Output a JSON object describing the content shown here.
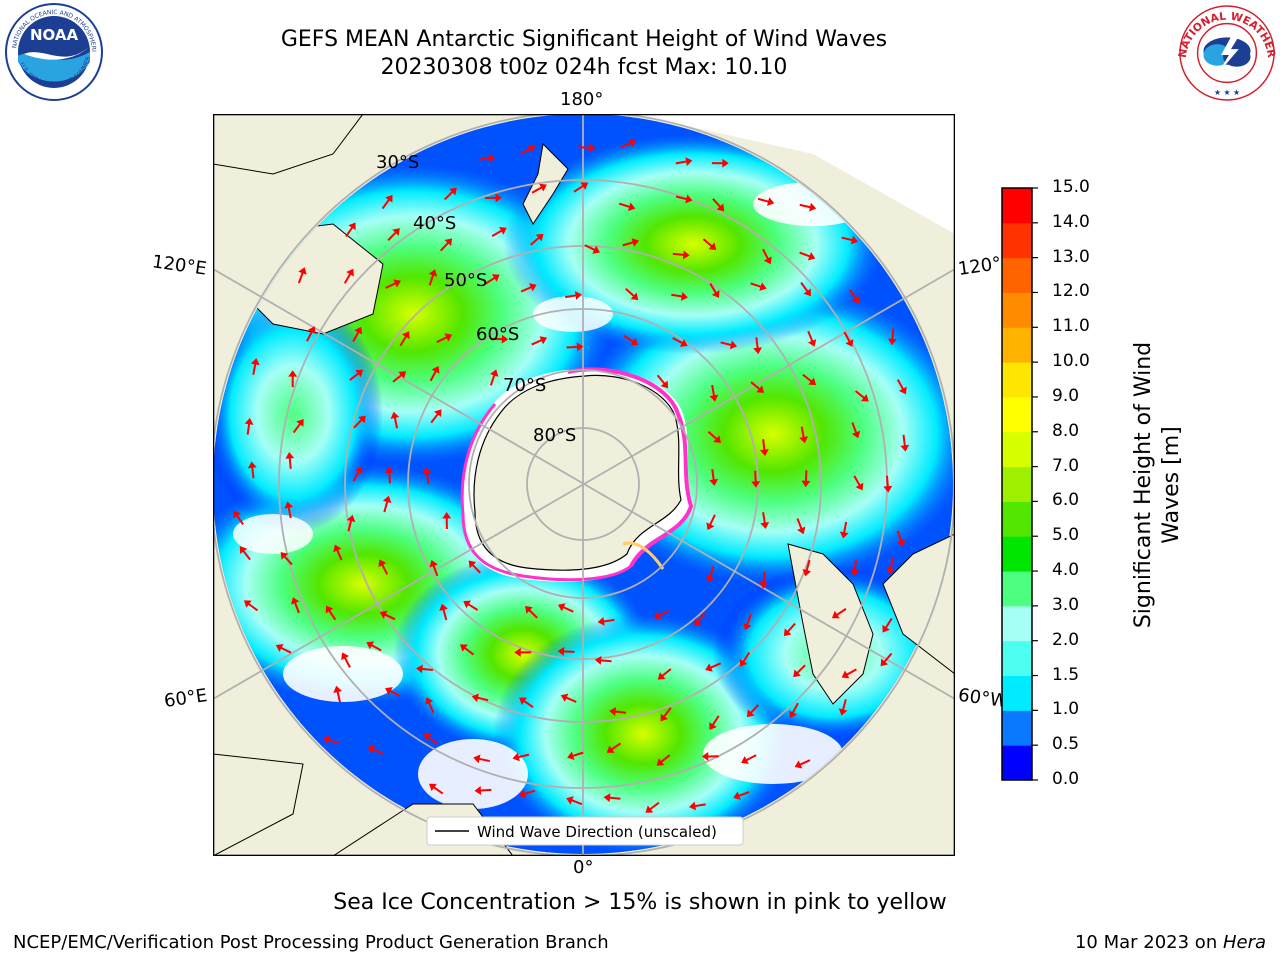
{
  "title_line1": "GEFS MEAN Antarctic Significant Height of Wind Waves",
  "title_line2": "20230308 t00z 024h fcst   Max: 10.10",
  "lon_labels": {
    "top": "180°",
    "bottom": "0°",
    "left_upper": "120°E",
    "left_lower": "60°E",
    "right_upper": "120°",
    "right_lower": "60°W"
  },
  "lat_labels": [
    "30°S",
    "40°S",
    "50°S",
    "60°S",
    "70°S",
    "80°S"
  ],
  "legend_label": "Wind Wave Direction (unscaled)",
  "colorbar": {
    "label_line1": "Significant Height of Wind",
    "label_line2": "Waves [m]",
    "ticks": [
      "0.0",
      "0.5",
      "1.0",
      "1.5",
      "2.0",
      "3.0",
      "4.0",
      "5.0",
      "6.0",
      "7.0",
      "8.0",
      "9.0",
      "10.0",
      "11.0",
      "12.0",
      "13.0",
      "14.0",
      "15.0"
    ],
    "colors": [
      "#0000ff",
      "#0a78ff",
      "#00ebff",
      "#4cfff0",
      "#a6fff5",
      "#4dff80",
      "#00e600",
      "#52e600",
      "#9ef000",
      "#d8ff00",
      "#ffff00",
      "#ffe600",
      "#ffb300",
      "#ff8c00",
      "#ff6400",
      "#ff3200",
      "#ff0000"
    ]
  },
  "ice_note": "Sea Ice Concentration > 15% is shown in pink to yellow",
  "credit": "NCEP/EMC/Verification Post Processing Product Generation Branch",
  "date_prefix": "10 Mar 2023 on ",
  "date_host": "Hera",
  "chart_data": {
    "type": "heatmap",
    "title": "GEFS MEAN Antarctic Significant Height of Wind Waves",
    "subtitle": "20230308 t00z 024h fcst   Max: 10.10",
    "projection": "south polar stereographic",
    "max_value": 10.1,
    "colorbar_range": [
      0.0,
      15.0
    ],
    "colorbar_label": "Significant Height of Wind Waves [m]",
    "latitude_circles": [
      "30°S",
      "40°S",
      "50°S",
      "60°S",
      "70°S",
      "80°S"
    ],
    "longitude_labels": [
      "180°",
      "120°E",
      "60°E",
      "0°",
      "60°W",
      "120°"
    ],
    "legend": [
      "Wind Wave Direction (unscaled)"
    ],
    "grid": true
  }
}
